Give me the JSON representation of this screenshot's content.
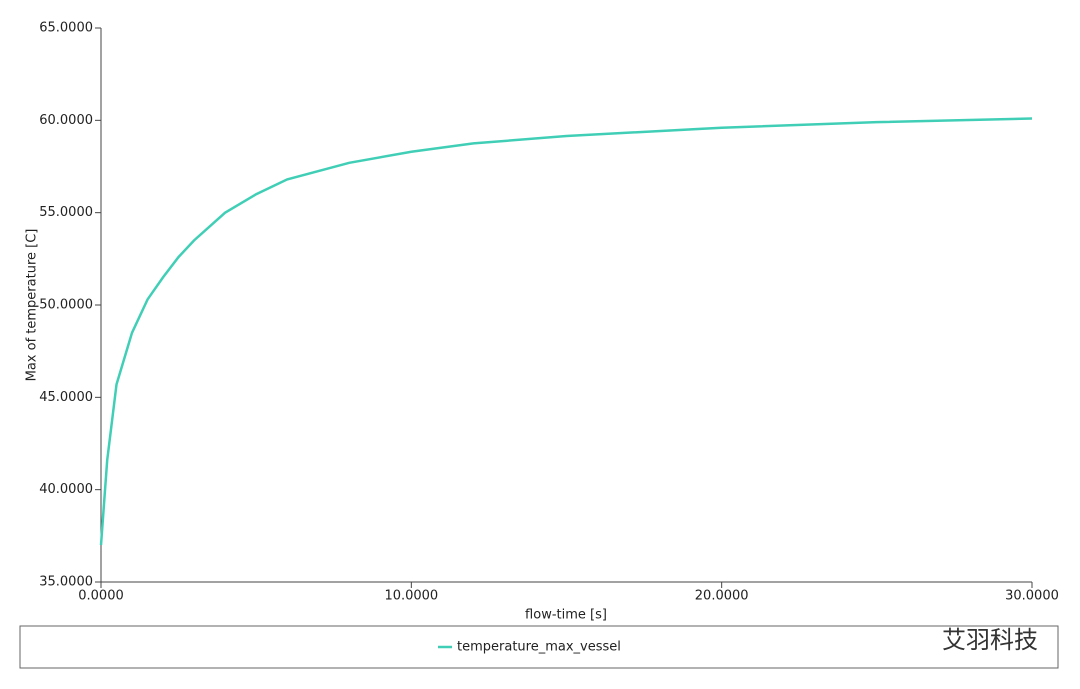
{
  "chart_data": {
    "type": "line",
    "x_label": "flow-time [s]",
    "y_label": "Max of temperature [C]",
    "x": [
      0,
      0.2,
      0.5,
      1,
      1.5,
      2,
      2.5,
      3,
      4,
      5,
      6,
      8,
      10,
      12,
      15,
      20,
      25,
      30
    ],
    "series": [
      {
        "name": "temperature_max_vessel",
        "color": "#40cfb6",
        "values": [
          37.0,
          41.6,
          45.7,
          48.5,
          50.3,
          51.5,
          52.6,
          53.5,
          55.0,
          56.0,
          56.8,
          57.7,
          58.3,
          58.75,
          59.15,
          59.6,
          59.9,
          60.1
        ]
      }
    ],
    "xlim": [
      0,
      30
    ],
    "ylim": [
      35,
      65
    ],
    "xticks": [
      {
        "value": 0,
        "label": "0.0000"
      },
      {
        "value": 10,
        "label": "10.0000"
      },
      {
        "value": 20,
        "label": "20.0000"
      },
      {
        "value": 30,
        "label": "30.0000"
      }
    ],
    "yticks": [
      {
        "value": 35,
        "label": "35.0000"
      },
      {
        "value": 40,
        "label": "40.0000"
      },
      {
        "value": 45,
        "label": "45.0000"
      },
      {
        "value": 50,
        "label": "50.0000"
      },
      {
        "value": 55,
        "label": "55.0000"
      },
      {
        "value": 60,
        "label": "60.0000"
      },
      {
        "value": 65,
        "label": "65.0000"
      }
    ],
    "grid": false,
    "legend": "bottom",
    "watermark": "艾羽科技"
  }
}
